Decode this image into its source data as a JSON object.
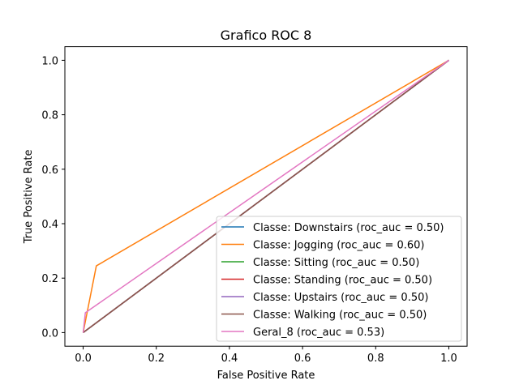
{
  "chart_data": {
    "type": "line",
    "title": "Grafico ROC 8",
    "xlabel": "False Positive Rate",
    "ylabel": "True Positive Rate",
    "xlim": [
      -0.05,
      1.05
    ],
    "ylim": [
      -0.05,
      1.05
    ],
    "xticks": [
      0.0,
      0.2,
      0.4,
      0.6,
      0.8,
      1.0
    ],
    "yticks": [
      0.0,
      0.2,
      0.4,
      0.6,
      0.8,
      1.0
    ],
    "tick_labels": [
      "0.0",
      "0.2",
      "0.4",
      "0.6",
      "0.8",
      "1.0"
    ],
    "grid": false,
    "legend_position": "lower right",
    "series": [
      {
        "name": "Classe: Downstairs (roc_auc = 0.50)",
        "color": "#1f77b4",
        "x": [
          0,
          1
        ],
        "y": [
          0,
          1
        ]
      },
      {
        "name": "Classe: Jogging (roc_auc = 0.60)",
        "color": "#ff7f0e",
        "x": [
          0,
          0.036,
          1
        ],
        "y": [
          0,
          0.245,
          1
        ]
      },
      {
        "name": "Classe: Sitting (roc_auc = 0.50)",
        "color": "#2ca02c",
        "x": [
          0,
          1
        ],
        "y": [
          0,
          1
        ]
      },
      {
        "name": "Classe: Standing (roc_auc = 0.50)",
        "color": "#d62728",
        "x": [
          0,
          1
        ],
        "y": [
          0,
          1
        ]
      },
      {
        "name": "Classe: Upstairs (roc_auc = 0.50)",
        "color": "#9467bd",
        "x": [
          0,
          1
        ],
        "y": [
          0,
          1
        ]
      },
      {
        "name": "Classe: Walking (roc_auc = 0.50)",
        "color": "#8c564b",
        "x": [
          0,
          1
        ],
        "y": [
          0,
          1
        ]
      },
      {
        "name": "Geral_8 (roc_auc = 0.53)",
        "color": "#e377c2",
        "x": [
          0,
          0.006,
          1
        ],
        "y": [
          0,
          0.073,
          1
        ]
      }
    ]
  }
}
